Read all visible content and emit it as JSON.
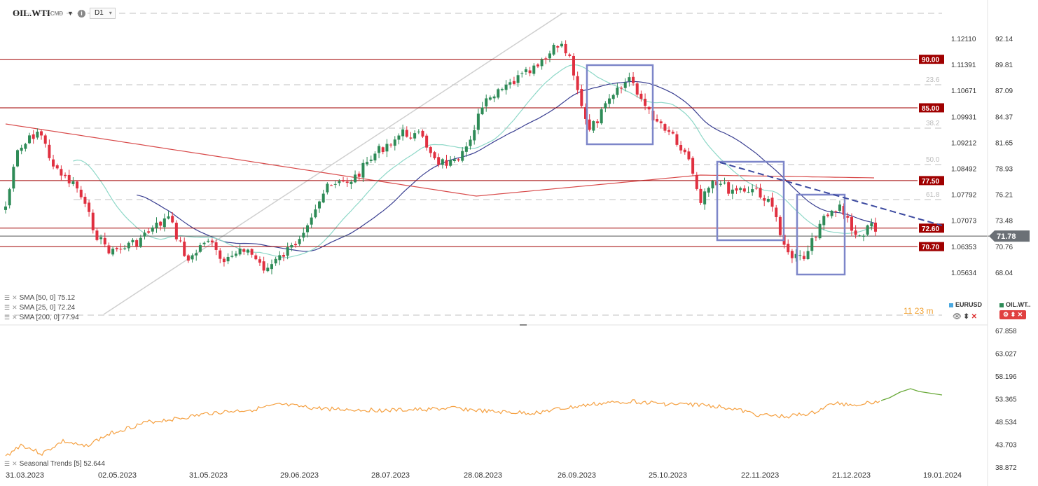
{
  "header": {
    "symbol": "OIL.WTI",
    "symbol_suffix": "CMD",
    "timeframe": "D1"
  },
  "indicators": {
    "sma50": "SMA [50, 0] 75.12",
    "sma25": "SMA [25, 0] 72.24",
    "sma200": "SMA [200, 0] 77.94",
    "seasonal": "Seasonal Trends [5] 52.644"
  },
  "legend": {
    "eurusd": "EURUSD",
    "oilwti": "OIL.WT..",
    "timer": "11 23 m"
  },
  "colors": {
    "bull": "#2e8b57",
    "bear": "#e03040",
    "sma50": "#3a3f91",
    "sma25": "#8ed8c8",
    "sma200": "#d84a4a",
    "level": "#a00000",
    "box": "#7d86c9",
    "seasonal_past": "#f5a040",
    "seasonal_future": "#6aaa3a",
    "price_tag": "#6b7076"
  },
  "chart_data": {
    "type": "candlestick",
    "x_dates": [
      "31.03.2023",
      "02.05.2023",
      "31.05.2023",
      "29.06.2023",
      "28.07.2023",
      "28.08.2023",
      "26.09.2023",
      "25.10.2023",
      "22.11.2023",
      "21.12.2023",
      "19.01.2024"
    ],
    "price_axis": [
      "92.14",
      "89.81",
      "87.09",
      "84.37",
      "81.65",
      "78.93",
      "76.21",
      "73.48",
      "70.76",
      "68.04"
    ],
    "eurusd_axis": [
      "1.12110",
      "1.11391",
      "1.10671",
      "1.09931",
      "1.09212",
      "1.08492",
      "1.07792",
      "1.07073",
      "1.06353",
      "1.05634"
    ],
    "horizontal_levels": [
      {
        "label": "90.00",
        "value": 90.0
      },
      {
        "label": "85.00",
        "value": 85.0
      },
      {
        "label": "77.50",
        "value": 77.5
      },
      {
        "label": "72.60",
        "value": 72.6
      },
      {
        "label": "70.70",
        "value": 70.7
      }
    ],
    "current_price": {
      "label": "71.78",
      "value": 71.78
    },
    "fibonacci": [
      "23.6",
      "38.2",
      "50.0",
      "61.8"
    ],
    "seasonal_axis": [
      "67.858",
      "63.027",
      "58.196",
      "53.365",
      "48.534",
      "43.703",
      "38.872"
    ],
    "seasonal_last": 52.644
  }
}
